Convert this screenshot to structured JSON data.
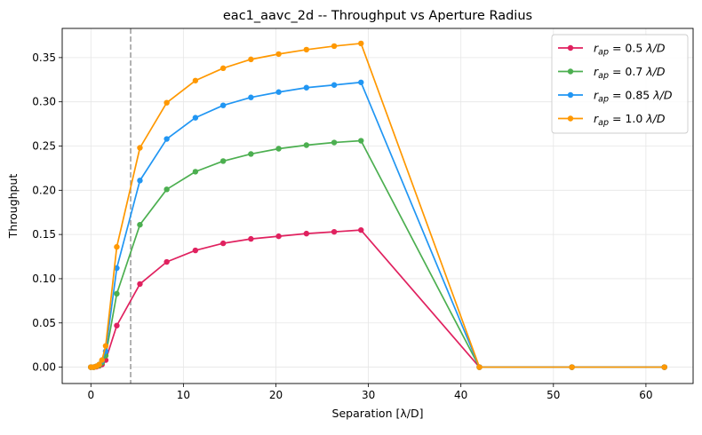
{
  "chart_data": {
    "type": "line",
    "title": "eac1_aavc_2d -- Throughput vs Aperture Radius",
    "xlabel": "Separation [λ/D]",
    "ylabel": "Throughput",
    "xlim": [
      -3.1,
      65.1
    ],
    "ylim": [
      -0.0185,
      0.383
    ],
    "xticks": [
      0,
      10,
      20,
      30,
      40,
      50,
      60
    ],
    "yticks": [
      0.0,
      0.05,
      0.1,
      0.15,
      0.2,
      0.25,
      0.3,
      0.35
    ],
    "ytick_labels": [
      "0.00",
      "0.05",
      "0.10",
      "0.15",
      "0.20",
      "0.25",
      "0.30",
      "0.35"
    ],
    "grid": true,
    "legend_position": "top-right",
    "vline": {
      "x": 4.3,
      "color": "#a0a0a0",
      "style": "dashed"
    },
    "x": [
      0,
      0.3,
      0.6,
      0.9,
      1.2,
      1.6,
      2.8,
      5.3,
      8.2,
      11.3,
      14.3,
      17.3,
      20.3,
      23.3,
      26.3,
      29.2,
      42.0,
      52.0,
      62.0
    ],
    "series": [
      {
        "name_prefix": "r",
        "name_sub": "ap",
        "name_value": " = 0.5 ",
        "name_unit": "λ/D",
        "color": "#e0215f",
        "values": [
          0.0,
          0.0,
          0.0005,
          0.0015,
          0.003,
          0.008,
          0.047,
          0.094,
          0.119,
          0.132,
          0.14,
          0.145,
          0.148,
          0.151,
          0.153,
          0.155,
          0.0,
          0.0,
          0.0
        ]
      },
      {
        "name_prefix": "r",
        "name_sub": "ap",
        "name_value": " = 0.7 ",
        "name_unit": "λ/D",
        "color": "#4caf50",
        "values": [
          0.0,
          0.0,
          0.001,
          0.002,
          0.005,
          0.013,
          0.083,
          0.161,
          0.201,
          0.221,
          0.233,
          0.241,
          0.247,
          0.251,
          0.254,
          0.256,
          0.0,
          0.0,
          0.0
        ]
      },
      {
        "name_prefix": "r",
        "name_sub": "ap",
        "name_value": " = 0.85 ",
        "name_unit": "λ/D",
        "color": "#2196f3",
        "values": [
          0.0,
          0.0,
          0.001,
          0.003,
          0.007,
          0.018,
          0.112,
          0.211,
          0.258,
          0.282,
          0.296,
          0.305,
          0.311,
          0.316,
          0.319,
          0.322,
          0.0,
          0.0,
          0.0
        ]
      },
      {
        "name_prefix": "r",
        "name_sub": "ap",
        "name_value": " = 1.0 ",
        "name_unit": "λ/D",
        "color": "#ff9800",
        "values": [
          0.0,
          0.0,
          0.001,
          0.003,
          0.008,
          0.024,
          0.136,
          0.248,
          0.299,
          0.324,
          0.338,
          0.348,
          0.354,
          0.359,
          0.363,
          0.366,
          0.0,
          0.0,
          0.0
        ]
      }
    ]
  }
}
